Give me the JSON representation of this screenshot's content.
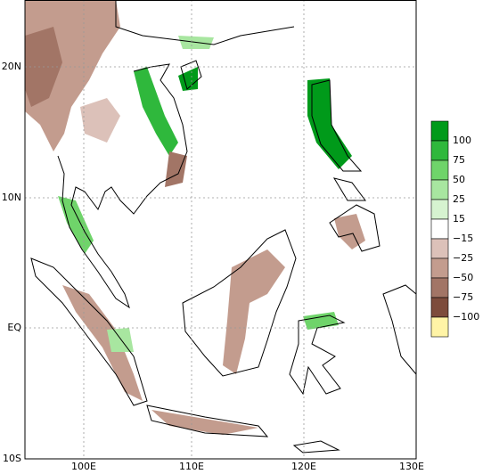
{
  "map": {
    "lat_labels": [
      "20N",
      "10N",
      "EQ",
      "10S"
    ],
    "lon_labels": [
      "100E",
      "110E",
      "120E",
      "130E"
    ],
    "colorbar": {
      "labels": [
        "100",
        "75",
        "50",
        "25",
        "15",
        "−15",
        "−25",
        "−50",
        "−75",
        "−100"
      ],
      "colors": [
        "#009a1a",
        "#2fb83c",
        "#6fd46a",
        "#a8e6a0",
        "#d6f3d0",
        "#ffffff",
        "#dcc1b9",
        "#c39c8e",
        "#a27566",
        "#7d4c3c",
        "#fff4a6"
      ]
    }
  }
}
